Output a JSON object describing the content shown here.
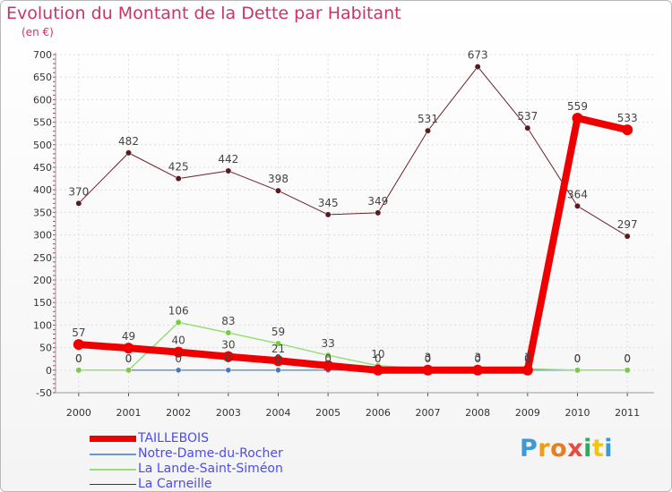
{
  "title": "Evolution du Montant de la Dette par Habitant",
  "subtitle": "(en €)",
  "logo": {
    "text": "Proxiti",
    "letters": [
      "P",
      "r",
      "o",
      "x",
      "i",
      "t",
      "i"
    ],
    "colors": [
      "#3a9ad9",
      "#f39c12",
      "#e67e22",
      "#e74c3c",
      "#27ae60",
      "#f1c40f",
      "#3a9ad9"
    ]
  },
  "chart_data": {
    "type": "line",
    "title": "Evolution du Montant de la Dette par Habitant",
    "ylabel": "(en €)",
    "xlabel": "",
    "x": [
      "2000",
      "2001",
      "2002",
      "2003",
      "2004",
      "2005",
      "2006",
      "2007",
      "2008",
      "2009",
      "2010",
      "2011"
    ],
    "ylim": [
      -50,
      700
    ],
    "yticks": [
      -50,
      0,
      50,
      100,
      150,
      200,
      250,
      300,
      350,
      400,
      450,
      500,
      550,
      600,
      650,
      700
    ],
    "grid": true,
    "legend_position": "bottom-left",
    "series": [
      {
        "name": "TAILLEBOIS",
        "color": "#ee0000",
        "values": [
          57,
          49,
          40,
          30,
          21,
          10,
          0,
          0,
          0,
          0,
          559,
          533
        ],
        "labels": [
          "57",
          "49",
          "40",
          "30",
          "21",
          "",
          "",
          "",
          "",
          "",
          "559",
          "533"
        ]
      },
      {
        "name": "Notre-Dame-du-Rocher",
        "color": "#6699cc",
        "values": [
          0,
          0,
          0,
          0,
          0,
          0,
          0,
          0,
          0,
          0,
          0,
          0
        ],
        "labels": [
          "0",
          "0",
          "0",
          "0",
          "0",
          "0",
          "0",
          "0",
          "0",
          "0",
          "0",
          "0"
        ]
      },
      {
        "name": "La Lande-Saint-Siméon",
        "color": "#99dd77",
        "values": [
          0,
          0,
          106,
          83,
          59,
          33,
          10,
          3,
          3,
          3,
          0,
          0
        ],
        "labels": [
          "0",
          "0",
          "106",
          "83",
          "59",
          "33",
          "10",
          "3",
          "3",
          "3",
          "0",
          "0"
        ]
      },
      {
        "name": "La Carneille",
        "color": "#6b1f2a",
        "values": [
          370,
          482,
          425,
          442,
          398,
          345,
          349,
          531,
          673,
          537,
          364,
          297
        ],
        "labels": [
          "370",
          "482",
          "425",
          "442",
          "398",
          "345",
          "349",
          "531",
          "673",
          "537",
          "364",
          "297"
        ]
      }
    ]
  }
}
